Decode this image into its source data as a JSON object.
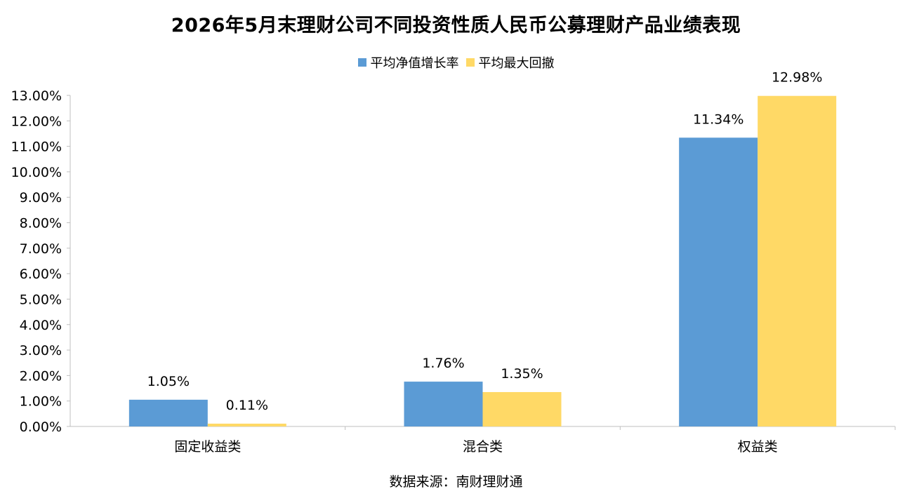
{
  "chart_data": {
    "type": "bar",
    "title": "2026年5月末理财公司不同投资性质人民币公募理财产品业绩表现",
    "categories": [
      "固定收益类",
      "混合类",
      "权益类"
    ],
    "series": [
      {
        "name": "平均净值增长率",
        "values": [
          1.05,
          1.76,
          11.34
        ],
        "labels": [
          "1.05%",
          "1.76%",
          "11.34%"
        ],
        "color": "#5B9BD5"
      },
      {
        "name": "平均最大回撤",
        "values": [
          0.11,
          1.35,
          12.98
        ],
        "labels": [
          "0.11%",
          "1.35%",
          "12.98%"
        ],
        "color": "#FFD966"
      }
    ],
    "ylim": [
      0,
      13
    ],
    "yticks": [
      "0.00%",
      "1.00%",
      "2.00%",
      "3.00%",
      "4.00%",
      "5.00%",
      "6.00%",
      "7.00%",
      "8.00%",
      "9.00%",
      "10.00%",
      "11.00%",
      "12.00%",
      "13.00%"
    ],
    "legend": "top-center",
    "grid": false
  },
  "source": "数据来源：南财理财通"
}
